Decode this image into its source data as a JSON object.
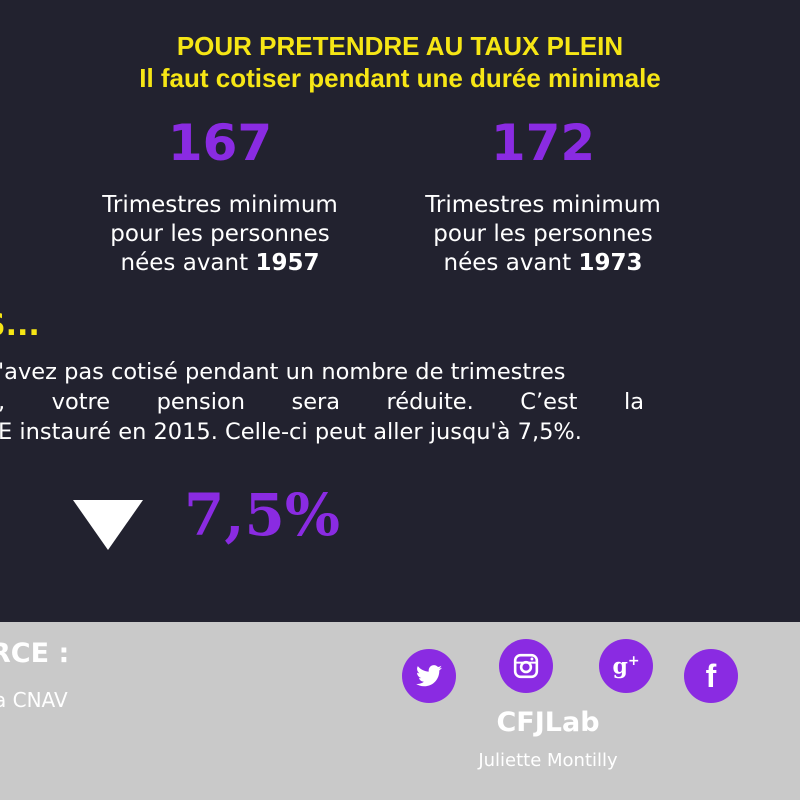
{
  "headline": {
    "line1": "POUR PRETENDRE AU TAUX PLEIN",
    "line2": "Il faut cotiser pendant une durée minimale"
  },
  "stats": [
    {
      "number": "167",
      "desc_line1": "Trimestres minimum",
      "desc_line2": "pour les personnes",
      "desc_line3_prefix": "nées avant ",
      "year": "1957"
    },
    {
      "number": "172",
      "desc_line1": "Trimestres minimum",
      "desc_line2": "pour les personnes",
      "desc_line3_prefix": "nées avant ",
      "year": "1973"
    }
  ],
  "mais": "S...",
  "paragraph": {
    "line1": "'avez pas cotisé pendant un nombre de trimestres",
    "line2_words": [
      ",",
      "votre",
      "pension",
      "sera",
      "réduite.",
      "C’est",
      "la"
    ],
    "line3": "E instauré en 2015. Celle-ci peut aller jusqu'à 7,5%."
  },
  "decrease": {
    "icon": "down-triangle-icon",
    "value": "7,5%"
  },
  "footer": {
    "source_title": "RCE :",
    "source_text": "a CNAV",
    "brand": "CFJLab",
    "author": "Juliette Montilly",
    "social_icons": [
      "twitter-icon",
      "instagram-icon",
      "google-plus-icon",
      "facebook-icon"
    ]
  },
  "colors": {
    "background": "#22222f",
    "accent_yellow": "#f6e615",
    "accent_purple": "#8a2be2",
    "footer_gray": "#c9c9c9"
  }
}
